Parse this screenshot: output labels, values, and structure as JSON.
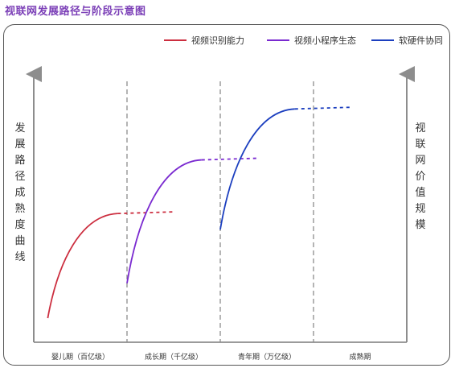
{
  "chart_title": "视联网发展路径与阶段示意图",
  "chart_data": {
    "type": "line",
    "title": "视联网发展路径与阶段示意图",
    "ylabel_left": "发展路径成熟度曲线",
    "ylabel_right": "视联网价值规模",
    "categories": [
      "婴儿期（百亿级）",
      "成长期（千亿级）",
      "青年期（万亿级）",
      "成熟期"
    ],
    "series": [
      {
        "name": "视频识别能力",
        "color": "#cc2e3f",
        "start": 0.15,
        "end": 0.9,
        "plateau": 0.48
      },
      {
        "name": "视频小程序生态",
        "color": "#7a2ad0",
        "start": 1.0,
        "end": 1.8,
        "plateau": 0.68
      },
      {
        "name": "软硬件协同",
        "color": "#1c3fbf",
        "start": 2.0,
        "end": 2.8,
        "plateau": 0.87
      }
    ],
    "legend_position": "top-right",
    "grid": false
  }
}
